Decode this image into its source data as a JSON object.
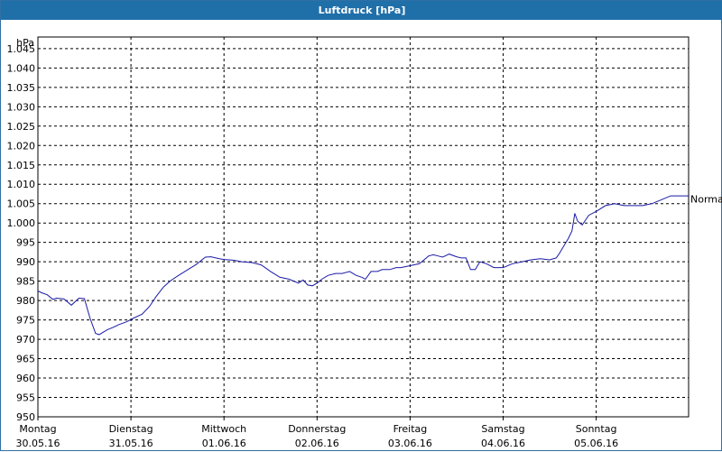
{
  "window": {
    "title": "Luftdruck [hPa]"
  },
  "colors": {
    "titlebar": "#1f6fa9",
    "line": "#1a1aa6",
    "grid": "#000000"
  },
  "chart_data": {
    "type": "line",
    "title": "Luftdruck [hPa]",
    "ylabel": "hPa",
    "xlabel": "",
    "ylim": [
      950,
      1048
    ],
    "xlim": [
      0,
      7.1
    ],
    "grid": true,
    "y_ticks": [
      950,
      955,
      960,
      965,
      970,
      975,
      980,
      985,
      990,
      995,
      1000,
      1005,
      1010,
      1015,
      1020,
      1025,
      1030,
      1035,
      1040,
      1045
    ],
    "y_tick_labels": [
      "950",
      "955",
      "960",
      "965",
      "970",
      "975",
      "980",
      "985",
      "990",
      "995",
      "1.000",
      "1.005",
      "1.010",
      "1.015",
      "1.020",
      "1.025",
      "1.030",
      "1.035",
      "1.040",
      "1.045"
    ],
    "x_ticks": [
      {
        "day": "Montag",
        "date": "30.05.16"
      },
      {
        "day": "Dienstag",
        "date": "31.05.16"
      },
      {
        "day": "Mittwoch",
        "date": "01.06.16"
      },
      {
        "day": "Donnerstag",
        "date": "02.06.16"
      },
      {
        "day": "Freitag",
        "date": "03.06.16"
      },
      {
        "day": "Samstag",
        "date": "04.06.16"
      },
      {
        "day": "Sonntag",
        "date": "05.06.16"
      }
    ],
    "reference_line": {
      "label": "Normal",
      "value": 1005
    },
    "series": [
      {
        "x": [
          0,
          0.04,
          0.1,
          0.16,
          0.2,
          0.28,
          0.36,
          0.44,
          0.5,
          0.56,
          0.62,
          0.66,
          0.7,
          0.75,
          0.8,
          0.87,
          0.95,
          1.03,
          1.12,
          1.2,
          1.27,
          1.35,
          1.42,
          1.5,
          1.6,
          1.7,
          1.8,
          1.86,
          1.95,
          2.0,
          2.1,
          2.2,
          2.3,
          2.4,
          2.5,
          2.6,
          2.7,
          2.8,
          2.85,
          2.9,
          2.95,
          3.0,
          3.05,
          3.12,
          3.2,
          3.27,
          3.35,
          3.42,
          3.48,
          3.52,
          3.58,
          3.65,
          3.7,
          3.78,
          3.85,
          3.9,
          4.0,
          4.1,
          4.2,
          4.25,
          4.3,
          4.35,
          4.42,
          4.5,
          4.55,
          4.6,
          4.65,
          4.7,
          4.75,
          4.82,
          4.9,
          5.0,
          5.1,
          5.2,
          5.3,
          5.4,
          5.5,
          5.57,
          5.6,
          5.65,
          5.7,
          5.74,
          5.77,
          5.8,
          5.85,
          5.92,
          6.0,
          6.1,
          6.2,
          6.3,
          6.4,
          6.5,
          6.6,
          6.7,
          6.8,
          6.87,
          6.93,
          7.0
        ],
        "values": [
          982.5,
          982.0,
          981.5,
          980.3,
          980.6,
          980.4,
          978.8,
          980.6,
          980.5,
          975.5,
          971.5,
          971.2,
          971.8,
          972.5,
          973.0,
          973.8,
          974.5,
          975.5,
          976.5,
          978.5,
          981.0,
          983.5,
          985.0,
          986.3,
          987.8,
          989.3,
          991.2,
          991.3,
          990.8,
          990.6,
          990.4,
          990.0,
          989.8,
          989.2,
          987.5,
          986.0,
          985.5,
          984.5,
          985.3,
          984.0,
          983.8,
          984.5,
          985.5,
          986.5,
          987.0,
          987.0,
          987.5,
          986.5,
          986.0,
          985.5,
          987.5,
          987.5,
          988.0,
          988.0,
          988.5,
          988.5,
          989.0,
          989.5,
          991.5,
          991.8,
          991.5,
          991.2,
          992.0,
          991.3,
          991.0,
          991.0,
          988.0,
          988.0,
          990.0,
          989.5,
          988.5,
          988.5,
          989.5,
          990.0,
          990.5,
          990.8,
          990.5,
          991.0,
          992.0,
          994.0,
          996.0,
          998.0,
          1002.5,
          1000.5,
          999.5,
          1002.0,
          1003.0,
          1004.5,
          1005.0,
          1004.5,
          1004.5,
          1004.5,
          1005.0,
          1006.0,
          1007.0,
          1007.0,
          1007.0,
          1007.0
        ]
      }
    ]
  }
}
